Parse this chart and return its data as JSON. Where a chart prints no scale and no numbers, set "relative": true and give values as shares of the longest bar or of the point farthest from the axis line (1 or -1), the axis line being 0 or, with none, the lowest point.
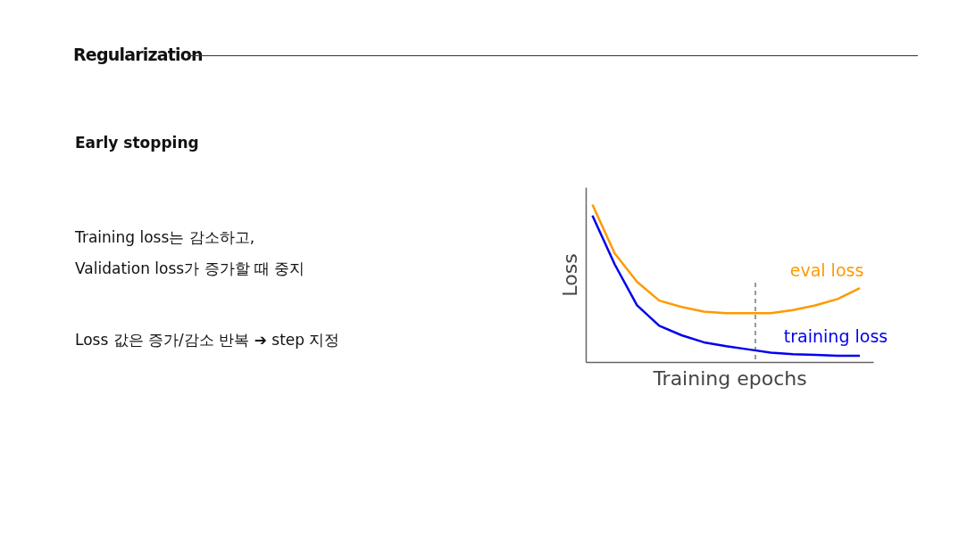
{
  "chart_data": {
    "type": "line",
    "relative": true,
    "title": "Regularization",
    "subtitle": "Early stopping",
    "annotations": [
      "Training loss는 감소하고,",
      "Validation loss가 증가할 때 중지",
      "Loss 값은 증가/감소 반복 ➔ step 지정"
    ],
    "xlabel": "Training epochs",
    "ylabel": "Loss",
    "categories": [
      null,
      null,
      null,
      null,
      null,
      null,
      null,
      null,
      null,
      null,
      null,
      null,
      null
    ],
    "line_style": "solid",
    "series": [
      {
        "name": "eval loss",
        "color": "#ff9900",
        "values": [
          1.0,
          0.69,
          0.51,
          0.39,
          0.35,
          0.32,
          0.31,
          0.31,
          0.31,
          0.33,
          0.36,
          0.4,
          0.47
        ]
      },
      {
        "name": "training loss",
        "color": "#0000ee",
        "values": [
          0.93,
          0.62,
          0.36,
          0.23,
          0.17,
          0.125,
          0.1,
          0.08,
          0.06,
          0.05,
          0.045,
          0.04,
          0.04
        ]
      }
    ]
  }
}
